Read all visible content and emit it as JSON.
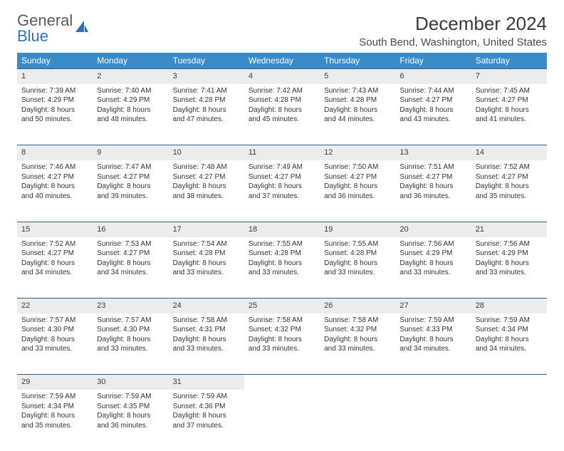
{
  "brand": {
    "part1": "General",
    "part2": "Blue"
  },
  "title": "December 2024",
  "location": "South Bend, Washington, United States",
  "colors": {
    "header_bg": "#3b8bc9",
    "header_text": "#ffffff",
    "daynum_bg": "#ececec",
    "rule": "#2d5f8a",
    "brand_gray": "#5a5a5a",
    "brand_blue": "#2d72b8"
  },
  "weekdays": [
    "Sunday",
    "Monday",
    "Tuesday",
    "Wednesday",
    "Thursday",
    "Friday",
    "Saturday"
  ],
  "weeks": [
    [
      {
        "n": "1",
        "sr": "Sunrise: 7:39 AM",
        "ss": "Sunset: 4:29 PM",
        "dl": "Daylight: 8 hours and 50 minutes."
      },
      {
        "n": "2",
        "sr": "Sunrise: 7:40 AM",
        "ss": "Sunset: 4:29 PM",
        "dl": "Daylight: 8 hours and 48 minutes."
      },
      {
        "n": "3",
        "sr": "Sunrise: 7:41 AM",
        "ss": "Sunset: 4:28 PM",
        "dl": "Daylight: 8 hours and 47 minutes."
      },
      {
        "n": "4",
        "sr": "Sunrise: 7:42 AM",
        "ss": "Sunset: 4:28 PM",
        "dl": "Daylight: 8 hours and 45 minutes."
      },
      {
        "n": "5",
        "sr": "Sunrise: 7:43 AM",
        "ss": "Sunset: 4:28 PM",
        "dl": "Daylight: 8 hours and 44 minutes."
      },
      {
        "n": "6",
        "sr": "Sunrise: 7:44 AM",
        "ss": "Sunset: 4:27 PM",
        "dl": "Daylight: 8 hours and 43 minutes."
      },
      {
        "n": "7",
        "sr": "Sunrise: 7:45 AM",
        "ss": "Sunset: 4:27 PM",
        "dl": "Daylight: 8 hours and 41 minutes."
      }
    ],
    [
      {
        "n": "8",
        "sr": "Sunrise: 7:46 AM",
        "ss": "Sunset: 4:27 PM",
        "dl": "Daylight: 8 hours and 40 minutes."
      },
      {
        "n": "9",
        "sr": "Sunrise: 7:47 AM",
        "ss": "Sunset: 4:27 PM",
        "dl": "Daylight: 8 hours and 39 minutes."
      },
      {
        "n": "10",
        "sr": "Sunrise: 7:48 AM",
        "ss": "Sunset: 4:27 PM",
        "dl": "Daylight: 8 hours and 38 minutes."
      },
      {
        "n": "11",
        "sr": "Sunrise: 7:49 AM",
        "ss": "Sunset: 4:27 PM",
        "dl": "Daylight: 8 hours and 37 minutes."
      },
      {
        "n": "12",
        "sr": "Sunrise: 7:50 AM",
        "ss": "Sunset: 4:27 PM",
        "dl": "Daylight: 8 hours and 36 minutes."
      },
      {
        "n": "13",
        "sr": "Sunrise: 7:51 AM",
        "ss": "Sunset: 4:27 PM",
        "dl": "Daylight: 8 hours and 36 minutes."
      },
      {
        "n": "14",
        "sr": "Sunrise: 7:52 AM",
        "ss": "Sunset: 4:27 PM",
        "dl": "Daylight: 8 hours and 35 minutes."
      }
    ],
    [
      {
        "n": "15",
        "sr": "Sunrise: 7:52 AM",
        "ss": "Sunset: 4:27 PM",
        "dl": "Daylight: 8 hours and 34 minutes."
      },
      {
        "n": "16",
        "sr": "Sunrise: 7:53 AM",
        "ss": "Sunset: 4:27 PM",
        "dl": "Daylight: 8 hours and 34 minutes."
      },
      {
        "n": "17",
        "sr": "Sunrise: 7:54 AM",
        "ss": "Sunset: 4:28 PM",
        "dl": "Daylight: 8 hours and 33 minutes."
      },
      {
        "n": "18",
        "sr": "Sunrise: 7:55 AM",
        "ss": "Sunset: 4:28 PM",
        "dl": "Daylight: 8 hours and 33 minutes."
      },
      {
        "n": "19",
        "sr": "Sunrise: 7:55 AM",
        "ss": "Sunset: 4:28 PM",
        "dl": "Daylight: 8 hours and 33 minutes."
      },
      {
        "n": "20",
        "sr": "Sunrise: 7:56 AM",
        "ss": "Sunset: 4:29 PM",
        "dl": "Daylight: 8 hours and 33 minutes."
      },
      {
        "n": "21",
        "sr": "Sunrise: 7:56 AM",
        "ss": "Sunset: 4:29 PM",
        "dl": "Daylight: 8 hours and 33 minutes."
      }
    ],
    [
      {
        "n": "22",
        "sr": "Sunrise: 7:57 AM",
        "ss": "Sunset: 4:30 PM",
        "dl": "Daylight: 8 hours and 33 minutes."
      },
      {
        "n": "23",
        "sr": "Sunrise: 7:57 AM",
        "ss": "Sunset: 4:30 PM",
        "dl": "Daylight: 8 hours and 33 minutes."
      },
      {
        "n": "24",
        "sr": "Sunrise: 7:58 AM",
        "ss": "Sunset: 4:31 PM",
        "dl": "Daylight: 8 hours and 33 minutes."
      },
      {
        "n": "25",
        "sr": "Sunrise: 7:58 AM",
        "ss": "Sunset: 4:32 PM",
        "dl": "Daylight: 8 hours and 33 minutes."
      },
      {
        "n": "26",
        "sr": "Sunrise: 7:58 AM",
        "ss": "Sunset: 4:32 PM",
        "dl": "Daylight: 8 hours and 33 minutes."
      },
      {
        "n": "27",
        "sr": "Sunrise: 7:59 AM",
        "ss": "Sunset: 4:33 PM",
        "dl": "Daylight: 8 hours and 34 minutes."
      },
      {
        "n": "28",
        "sr": "Sunrise: 7:59 AM",
        "ss": "Sunset: 4:34 PM",
        "dl": "Daylight: 8 hours and 34 minutes."
      }
    ],
    [
      {
        "n": "29",
        "sr": "Sunrise: 7:59 AM",
        "ss": "Sunset: 4:34 PM",
        "dl": "Daylight: 8 hours and 35 minutes."
      },
      {
        "n": "30",
        "sr": "Sunrise: 7:59 AM",
        "ss": "Sunset: 4:35 PM",
        "dl": "Daylight: 8 hours and 36 minutes."
      },
      {
        "n": "31",
        "sr": "Sunrise: 7:59 AM",
        "ss": "Sunset: 4:36 PM",
        "dl": "Daylight: 8 hours and 37 minutes."
      },
      null,
      null,
      null,
      null
    ]
  ]
}
